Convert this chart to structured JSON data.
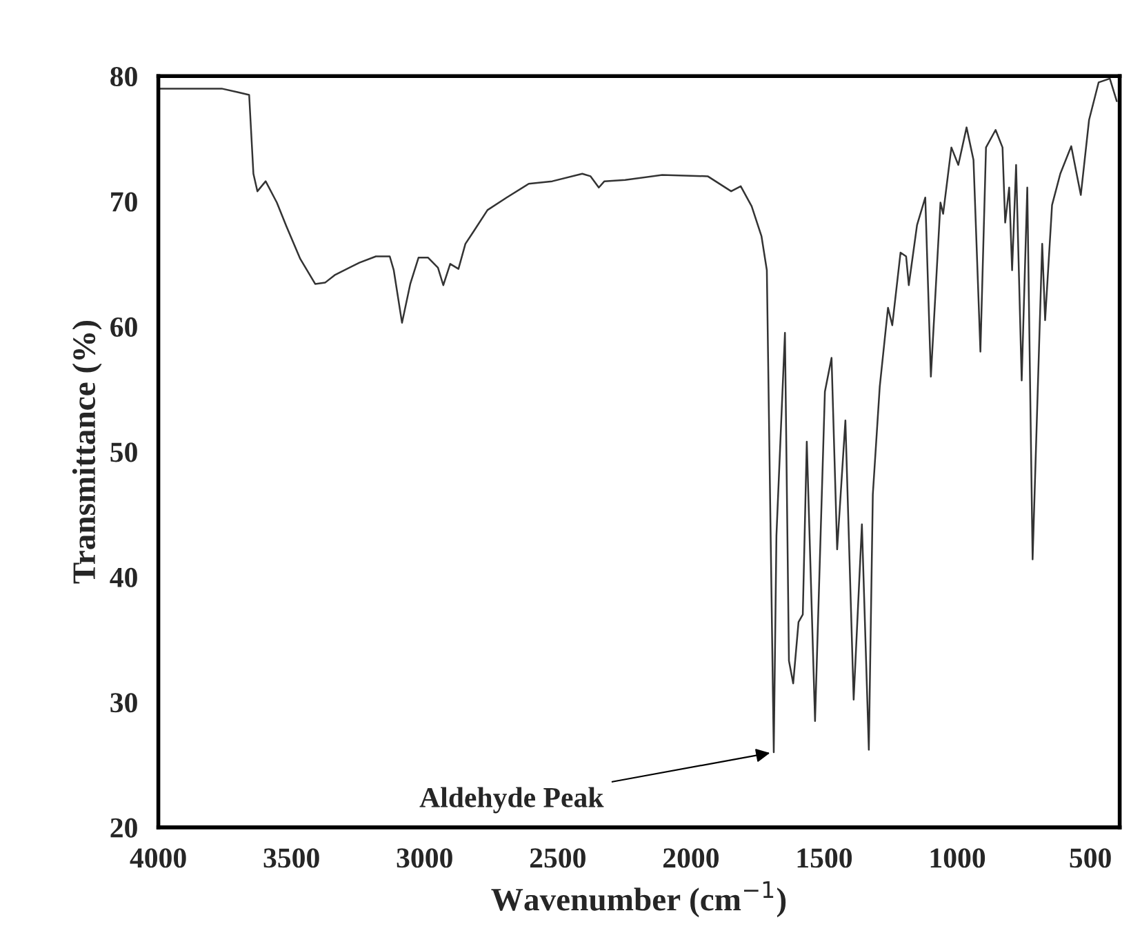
{
  "chart_data": {
    "type": "line",
    "xlabel": "Wavenumber (cm$^{−1}$)",
    "ylabel": "Transmittance (%)",
    "xlim": [
      4000,
      390
    ],
    "xticks": [
      4000,
      3500,
      3000,
      2500,
      2000,
      1500,
      1000,
      500
    ],
    "ylim": [
      20,
      80
    ],
    "yticks": [
      20,
      30,
      40,
      50,
      60,
      70,
      80
    ],
    "grid": false,
    "legend": false,
    "marker": "none",
    "line_style": "solid",
    "series": [
      {
        "color": "#333333",
        "x": [
          4000,
          3762,
          3700,
          3659,
          3643,
          3628,
          3597,
          3555,
          3519,
          3467,
          3411,
          3374,
          3338,
          3245,
          3183,
          3131,
          3116,
          3085,
          3054,
          3023,
          2987,
          2950,
          2930,
          2904,
          2873,
          2847,
          2816,
          2764,
          2692,
          2609,
          2521,
          2408,
          2377,
          2346,
          2325,
          2247,
          2108,
          1937,
          1849,
          1813,
          1772,
          1735,
          1715,
          1689,
          1679,
          1647,
          1632,
          1616,
          1596,
          1580,
          1565,
          1534,
          1497,
          1472,
          1451,
          1420,
          1389,
          1358,
          1332,
          1317,
          1291,
          1260,
          1244,
          1213,
          1192,
          1182,
          1151,
          1120,
          1099,
          1063,
          1053,
          1022,
          996,
          965,
          939,
          913,
          892,
          856,
          830,
          820,
          805,
          794,
          779,
          758,
          737,
          717,
          681,
          670,
          644,
          613,
          572,
          536,
          505,
          469,
          427,
          401
        ],
        "values": [
          79,
          79,
          78.7,
          78.5,
          72.2,
          70.8,
          71.6,
          69.9,
          68,
          65.4,
          63.4,
          63.5,
          64.1,
          65.1,
          65.6,
          65.6,
          64.5,
          60.3,
          63.4,
          65.5,
          65.5,
          64.7,
          63.3,
          65,
          64.6,
          66.6,
          67.6,
          69.3,
          70.3,
          71.4,
          71.6,
          72.2,
          72,
          71.1,
          71.6,
          71.7,
          72.1,
          72,
          70.8,
          71.2,
          69.6,
          67.2,
          64.5,
          26,
          43.3,
          59.5,
          33.3,
          31.5,
          36.4,
          37,
          50.8,
          28.5,
          54.8,
          57.5,
          42.2,
          52.5,
          30.2,
          44.2,
          26.2,
          46.6,
          55.2,
          61.5,
          60.1,
          65.9,
          65.6,
          63.3,
          68.1,
          70.3,
          56,
          69.9,
          69,
          74.3,
          72.9,
          75.9,
          73.3,
          58,
          74.3,
          75.7,
          74.3,
          68.3,
          71.1,
          64.5,
          72.9,
          55.7,
          71.1,
          41.4,
          66.6,
          60.5,
          69.7,
          72.2,
          74.4,
          70.5,
          76.5,
          79.5,
          79.8,
          78
        ]
      }
    ],
    "annotations": [
      {
        "text": "Aldehyde Peak",
        "x": 1689,
        "y": 26
      }
    ]
  }
}
